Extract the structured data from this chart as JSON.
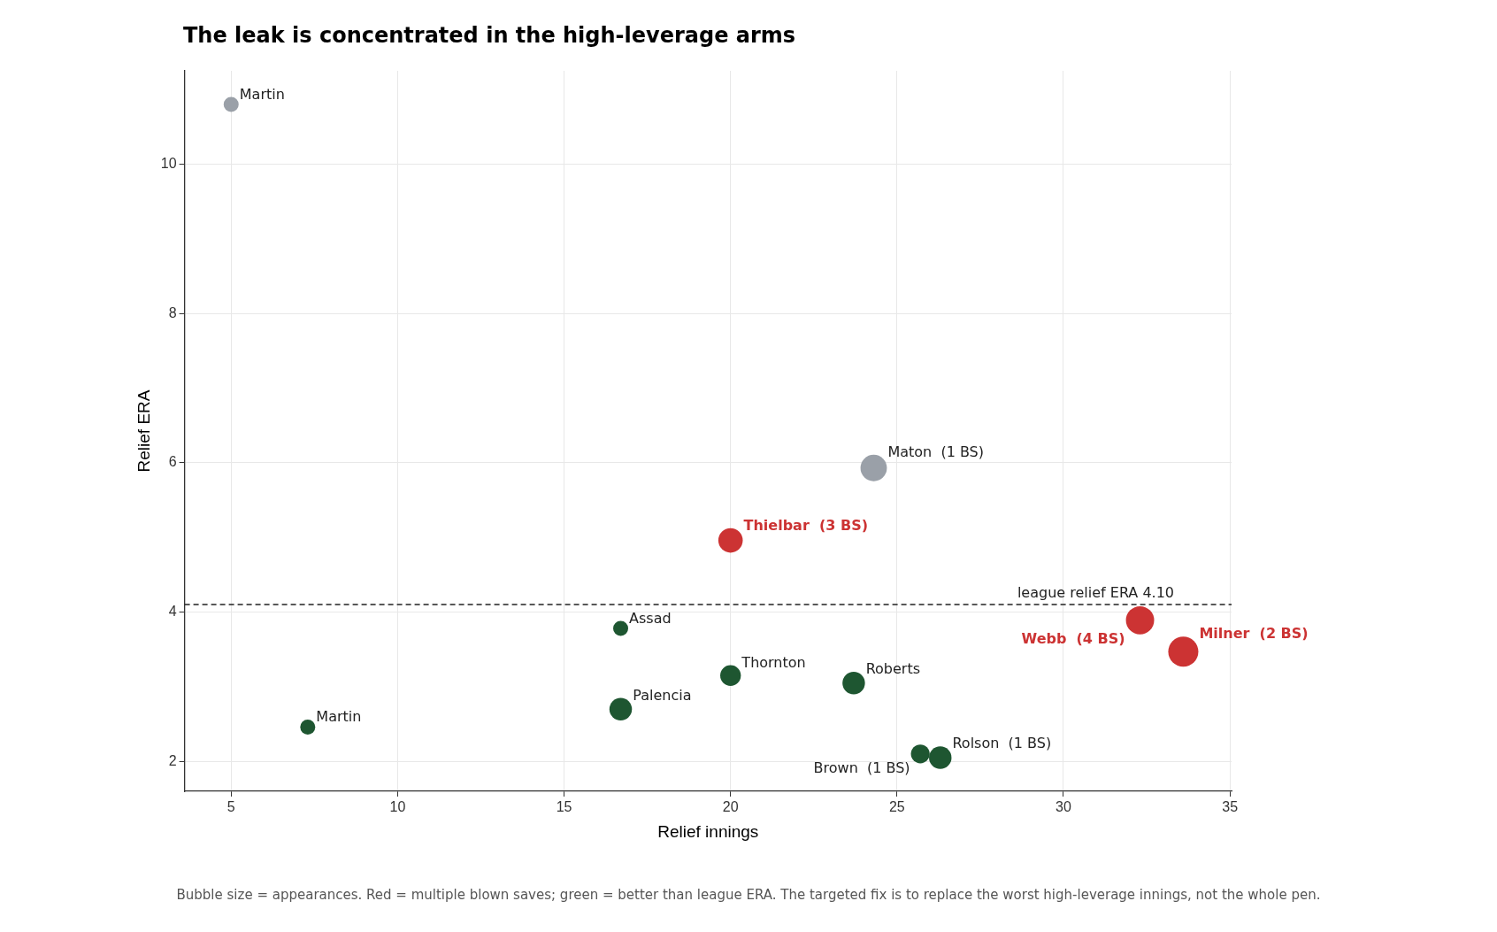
{
  "chart_data": {
    "type": "bubble",
    "title": "The leak is concentrated in the high-leverage arms",
    "xlabel": "Relief innings",
    "ylabel": "Relief ERA",
    "series": [
      {
        "color": "#cc3333",
        "x": [
          20,
          32.3,
          33.6
        ],
        "values": [
          4.96,
          3.89,
          3.47
        ],
        "sizes": [
          0.66,
          0.88,
          1
        ]
      },
      {
        "color": "#9aa0a8",
        "x": [
          5,
          24.3
        ],
        "values": [
          10.8,
          5.93
        ],
        "sizes": [
          0.25,
          0.77
        ]
      },
      {
        "color": "#1e5631",
        "x": [
          16.7,
          20,
          23.7,
          16.7,
          7.3,
          25.7,
          26.3
        ],
        "values": [
          3.78,
          3.15,
          3.05,
          2.7,
          2.46,
          2.1,
          2.05
        ],
        "sizes": [
          0.25,
          0.47,
          0.56,
          0.56,
          0.25,
          0.39,
          0.56
        ]
      }
    ],
    "xlim": [
      3.6,
      35.05
    ],
    "xticks": [
      5,
      10,
      15,
      20,
      25,
      30,
      35
    ],
    "ylim": [
      1.6,
      11.25
    ],
    "yticks": [
      2,
      4,
      6,
      8,
      10
    ],
    "grid": true,
    "legend": false,
    "ref_lines": [
      {
        "axis": "y",
        "value": 4.1,
        "label": "league relief ERA 4.10",
        "color": "#222222",
        "line_style": "dashed"
      }
    ],
    "annotations": [
      {
        "text": "Thielbar  (3 BS)",
        "x": 20,
        "y": 4.96
      },
      {
        "text": "Webb  (4 BS)",
        "x": 32.3,
        "y": 3.89
      },
      {
        "text": "Milner  (2 BS)",
        "x": 33.6,
        "y": 3.47
      },
      {
        "text": "Martin",
        "x": 5,
        "y": 10.8
      },
      {
        "text": "Maton  (1 BS)",
        "x": 24.3,
        "y": 5.93
      },
      {
        "text": "Assad",
        "x": 16.7,
        "y": 3.78
      },
      {
        "text": "Thornton",
        "x": 20,
        "y": 3.15
      },
      {
        "text": "Roberts",
        "x": 23.7,
        "y": 3.05
      },
      {
        "text": "Palencia",
        "x": 16.7,
        "y": 2.7
      },
      {
        "text": "Martin",
        "x": 7.3,
        "y": 2.46
      },
      {
        "text": "Brown  (1 BS)",
        "x": 25.7,
        "y": 2.1
      },
      {
        "text": "Rolson  (1 BS)",
        "x": 26.3,
        "y": 2.05
      },
      "Bubble size = appearances. Red = multiple blown saves; green = better than league ERA. The targeted fix is to replace the worst high-leverage innings, not the whole pen."
    ]
  }
}
